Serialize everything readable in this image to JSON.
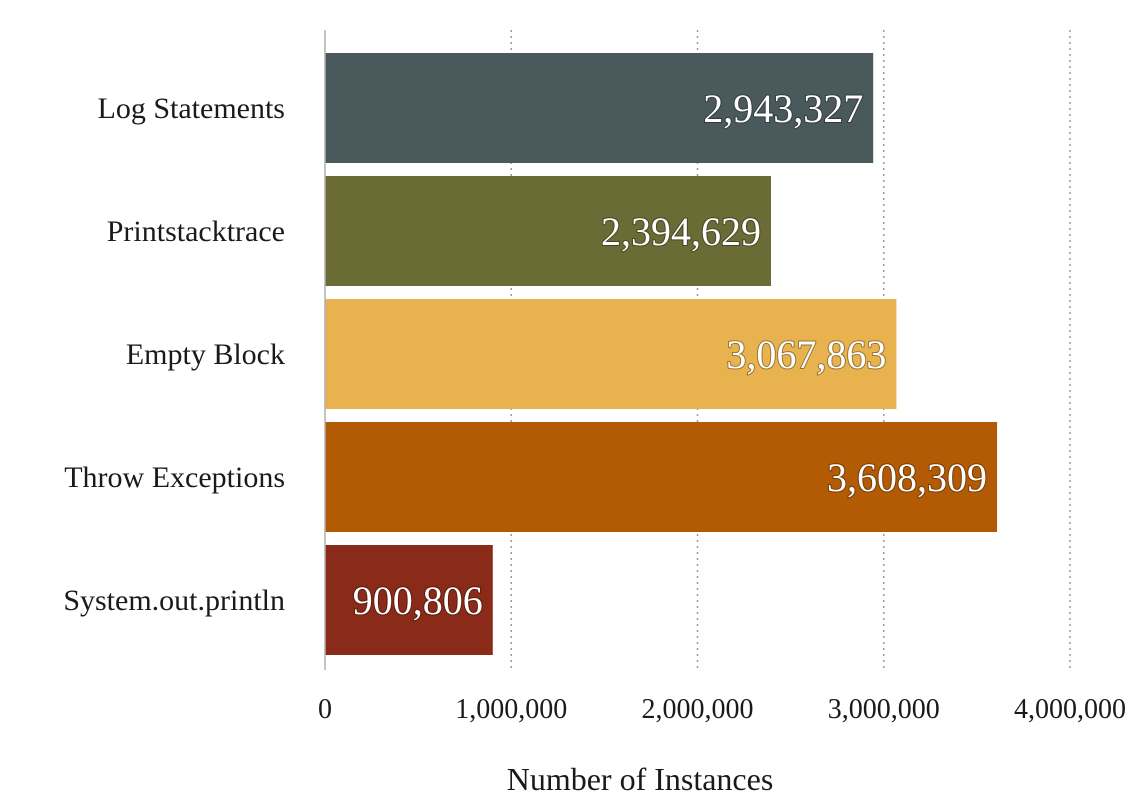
{
  "chart_data": {
    "type": "bar",
    "orientation": "horizontal",
    "categories": [
      "Log Statements",
      "Printstacktrace",
      "Empty Block",
      "Throw Exceptions",
      "System.out.println"
    ],
    "values": [
      2943327,
      2394629,
      3067863,
      3608309,
      900806
    ],
    "value_labels": [
      "2,943,327",
      "2,394,629",
      "3,067,863",
      "3,608,309",
      "900,806"
    ],
    "colors": [
      "#4a5a5c",
      "#6b6b36",
      "#e8b24e",
      "#b35a04",
      "#8a2a18"
    ],
    "xlabel": "Number of Instances",
    "ylabel": "",
    "xlim": [
      0,
      4000000
    ],
    "x_ticks": [
      0,
      1000000,
      2000000,
      3000000,
      4000000
    ],
    "x_tick_labels": [
      "0",
      "1,000,000",
      "2,000,000",
      "3,000,000",
      "4,000,000"
    ],
    "grid": "vertical-dotted",
    "legend": "none"
  }
}
